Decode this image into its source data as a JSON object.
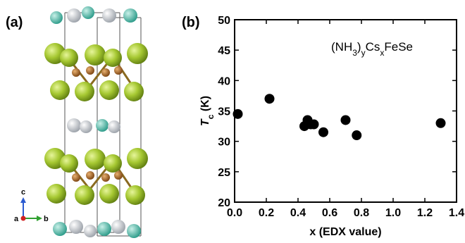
{
  "panel_a": {
    "label": "(a)",
    "axes": [
      "c",
      "a",
      "b"
    ]
  },
  "chart_data": {
    "type": "scatter",
    "panel_label": "(b)",
    "annotation": [
      {
        "text": "(NH"
      },
      {
        "text": "3",
        "sub": true
      },
      {
        "text": ")"
      },
      {
        "text": "y",
        "sub": true
      },
      {
        "text": "Cs"
      },
      {
        "text": "x",
        "sub": true
      },
      {
        "text": "FeSe"
      }
    ],
    "ylabel": [
      {
        "text": "T",
        "italic": true
      },
      {
        "text": "c",
        "sub": true
      },
      {
        "text": " (K)"
      }
    ],
    "xlabel": "x (EDX value)",
    "x": [
      0.02,
      0.22,
      0.44,
      0.46,
      0.48,
      0.5,
      0.56,
      0.7,
      0.77,
      1.3
    ],
    "values": [
      34.5,
      37,
      32.5,
      33.5,
      32.8,
      32.8,
      31.5,
      33.5,
      31,
      33
    ],
    "color": "#000000",
    "xlim": [
      0,
      1.4
    ],
    "ylim": [
      20,
      50
    ],
    "xticks": [
      {
        "value": 0,
        "label": "0.0"
      },
      0.2,
      0.4,
      0.6,
      0.8,
      {
        "value": 1,
        "label": "1.0"
      },
      1.2,
      1.4
    ],
    "yticks": [
      20,
      25,
      30,
      35,
      40,
      45,
      50
    ]
  }
}
